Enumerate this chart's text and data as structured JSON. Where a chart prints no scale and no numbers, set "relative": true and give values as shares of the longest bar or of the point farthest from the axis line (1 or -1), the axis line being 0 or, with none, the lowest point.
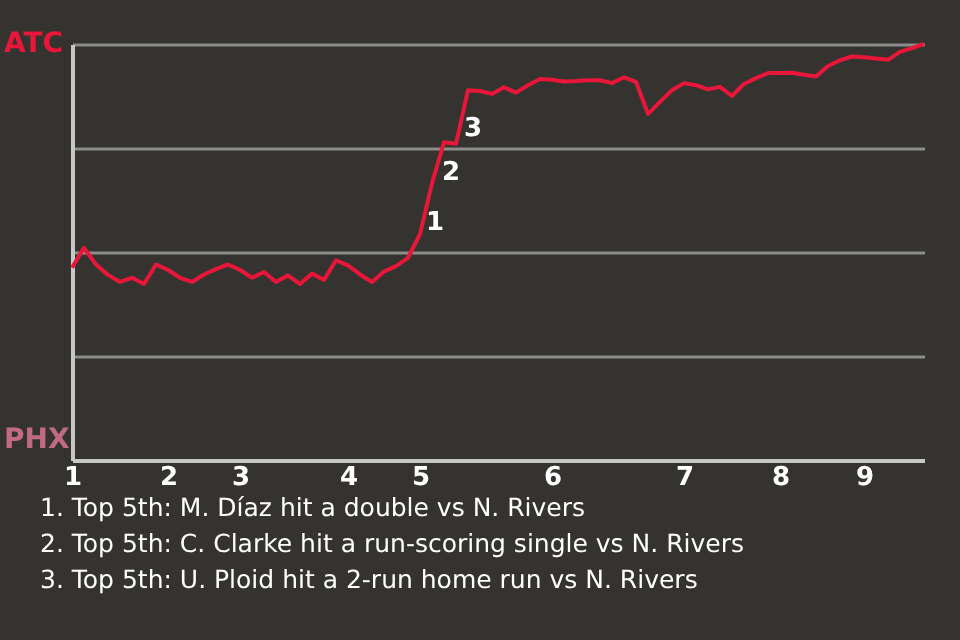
{
  "chart_data": {
    "type": "line",
    "relative": true,
    "categories": [
      "1",
      null,
      null,
      null,
      null,
      null,
      null,
      null,
      "2",
      null,
      null,
      null,
      null,
      null,
      "3",
      null,
      null,
      null,
      null,
      null,
      null,
      null,
      null,
      "4",
      null,
      null,
      null,
      null,
      null,
      "5",
      null,
      null,
      null,
      null,
      null,
      null,
      null,
      null,
      null,
      null,
      "6",
      null,
      null,
      null,
      null,
      null,
      null,
      null,
      null,
      null,
      null,
      "7",
      null,
      null,
      null,
      null,
      null,
      null,
      null,
      "8",
      null,
      null,
      null,
      null,
      null,
      null,
      "9",
      null,
      null,
      null,
      null,
      null
    ],
    "series": [
      {
        "color": "#e8173a",
        "values": [
          0.462,
          0.51,
          0.47,
          0.445,
          0.428,
          0.438,
          0.423,
          0.47,
          0.457,
          0.438,
          0.428,
          0.446,
          0.459,
          0.47,
          0.457,
          0.438,
          0.452,
          0.428,
          0.444,
          0.423,
          0.448,
          0.433,
          0.48,
          0.468,
          0.446,
          0.428,
          0.453,
          0.466,
          0.486,
          0.543,
          0.665,
          0.764,
          0.76,
          0.889,
          0.887,
          0.88,
          0.896,
          0.883,
          0.901,
          0.916,
          0.914,
          0.91,
          0.911,
          0.913,
          0.913,
          0.906,
          0.92,
          0.909,
          0.832,
          0.861,
          0.889,
          0.906,
          0.901,
          0.891,
          0.897,
          0.875,
          0.904,
          0.918,
          0.93,
          0.93,
          0.931,
          0.926,
          0.922,
          0.947,
          0.961,
          0.97,
          0.968,
          0.965,
          0.962,
          0.981,
          0.99,
          1
        ]
      }
    ],
    "grid": "y",
    "annotations": [
      "ATC",
      "PHX",
      "1",
      "2",
      "3",
      "1. Top 5th: M. Díaz hit a double vs N. Rivers",
      "2. Top 5th: C. Clarke hit a run-scoring single vs N. Rivers",
      "3. Top 5th: U. Ploid hit a 2-run home run vs N. Rivers"
    ]
  }
}
